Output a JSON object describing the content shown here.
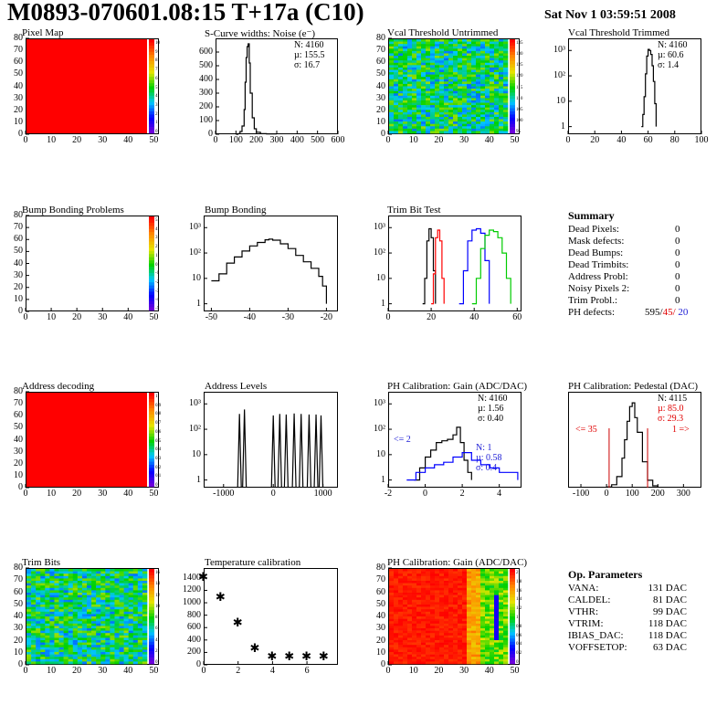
{
  "header": {
    "title": "M0893-070601.08:15 T+17a (C10)",
    "date": "Sat Nov  1 03:59:51 2008"
  },
  "colors": {
    "red": "#ff0000",
    "blue": "#0000ff",
    "green": "#00cc00",
    "black": "#000000",
    "darkred": "#cc0000"
  },
  "chart_data": [
    {
      "id": "pixel_map",
      "type": "heatmap",
      "title": "Pixel Map",
      "x_ticks": [
        0,
        10,
        20,
        30,
        40,
        50
      ],
      "y_ticks": [
        0,
        10,
        20,
        30,
        40,
        50,
        60,
        70,
        80
      ],
      "xlim": [
        0,
        52
      ],
      "ylim": [
        0,
        80
      ],
      "fill": "uniform-max",
      "colorbar_ticks": [
        "10",
        "9",
        "8",
        "7",
        "6",
        "5",
        "4",
        "3",
        "2",
        "1",
        "0"
      ]
    },
    {
      "id": "scurve",
      "type": "line",
      "title": "S-Curve widths: Noise (e⁻)",
      "x_ticks": [
        0,
        100,
        200,
        300,
        400,
        500,
        600
      ],
      "y_ticks": [
        0,
        100,
        200,
        300,
        400,
        500,
        600
      ],
      "xlim": [
        0,
        600
      ],
      "ylim": [
        0,
        700
      ],
      "stats": {
        "N": "N: 4160",
        "mean": "µ: 155.5",
        "sigma": "σ: 16.7"
      },
      "series": [
        {
          "name": "noise",
          "x": [
            100,
            110,
            120,
            130,
            140,
            145,
            150,
            155,
            160,
            165,
            170,
            180,
            190,
            200,
            220,
            250,
            300
          ],
          "y": [
            0,
            5,
            20,
            60,
            180,
            380,
            560,
            640,
            660,
            520,
            300,
            120,
            40,
            15,
            5,
            2,
            0
          ]
        }
      ]
    },
    {
      "id": "vcal_untrimmed",
      "type": "heatmap",
      "title": "Vcal Threshold Untrimmed",
      "x_ticks": [
        0,
        10,
        20,
        30,
        40,
        50
      ],
      "y_ticks": [
        0,
        10,
        20,
        30,
        40,
        50,
        60,
        70,
        80
      ],
      "xlim": [
        0,
        52
      ],
      "ylim": [
        0,
        80
      ],
      "fill": "noisy-mid",
      "colorbar_ticks": [
        "135",
        "130",
        "125",
        "120",
        "115",
        "110",
        "105",
        "100",
        "95"
      ]
    },
    {
      "id": "vcal_trimmed",
      "type": "line",
      "title": "Vcal Threshold Trimmed",
      "yscale": "log",
      "x_ticks": [
        0,
        20,
        40,
        60,
        80,
        100
      ],
      "y_ticks": [
        "1",
        "10",
        "10²",
        "10³"
      ],
      "xlim": [
        0,
        100
      ],
      "ylim_log": [
        0.5,
        3000
      ],
      "stats": {
        "N": "N: 4160",
        "mean": "µ: 60.6",
        "sigma": "σ:  1.4"
      },
      "series": [
        {
          "name": "threshold",
          "x": [
            55,
            56,
            57,
            58,
            59,
            60,
            61,
            62,
            63,
            64,
            65,
            66
          ],
          "y": [
            1,
            3,
            15,
            120,
            600,
            1100,
            1000,
            700,
            250,
            60,
            8,
            1
          ]
        }
      ]
    },
    {
      "id": "bump_problems",
      "type": "heatmap",
      "title": "Bump Bonding Problems",
      "x_ticks": [
        0,
        10,
        20,
        30,
        40,
        50
      ],
      "y_ticks": [
        0,
        10,
        20,
        30,
        40,
        50,
        60,
        70,
        80
      ],
      "xlim": [
        0,
        52
      ],
      "ylim": [
        0,
        80
      ],
      "fill": "empty",
      "colorbar_ticks": [
        "5",
        "4",
        "3",
        "2",
        "1",
        "0",
        "-1",
        "-2",
        "-3",
        "-4",
        "-5"
      ]
    },
    {
      "id": "bump_bonding",
      "type": "line",
      "title": "Bump Bonding",
      "yscale": "log",
      "x_ticks": [
        -50,
        -40,
        -30,
        -20
      ],
      "y_ticks": [
        "1",
        "10",
        "10²",
        "10³"
      ],
      "xlim": [
        -52,
        -17
      ],
      "ylim_log": [
        0.5,
        3000
      ],
      "series": [
        {
          "name": "bump",
          "x": [
            -50,
            -48,
            -46,
            -44,
            -42,
            -40,
            -38,
            -36,
            -35,
            -34,
            -32,
            -30,
            -28,
            -26,
            -24,
            -22,
            -21,
            -20
          ],
          "y": [
            8,
            15,
            40,
            70,
            120,
            190,
            260,
            330,
            350,
            320,
            230,
            150,
            80,
            45,
            25,
            12,
            5,
            1
          ]
        }
      ]
    },
    {
      "id": "trim_bit_test",
      "type": "line",
      "title": "Trim Bit Test",
      "yscale": "log",
      "x_ticks": [
        0,
        20,
        40,
        60
      ],
      "y_ticks": [
        "1",
        "10",
        "10²",
        "10³"
      ],
      "xlim": [
        0,
        62
      ],
      "ylim_log": [
        0.5,
        3000
      ],
      "series": [
        {
          "name": "black",
          "color": "black",
          "x": [
            16,
            17,
            18,
            19,
            20,
            21,
            22
          ],
          "y": [
            1,
            10,
            300,
            900,
            400,
            20,
            1
          ]
        },
        {
          "name": "red",
          "color": "red",
          "x": [
            20,
            21,
            22,
            23,
            24,
            25,
            26
          ],
          "y": [
            1,
            15,
            400,
            800,
            300,
            10,
            1
          ]
        },
        {
          "name": "blue",
          "color": "blue",
          "x": [
            33,
            35,
            37,
            39,
            41,
            43,
            45,
            47
          ],
          "y": [
            1,
            20,
            300,
            800,
            900,
            600,
            50,
            1
          ]
        },
        {
          "name": "green",
          "color": "green",
          "x": [
            39,
            41,
            43,
            45,
            47,
            49,
            51,
            53,
            55,
            57
          ],
          "y": [
            1,
            10,
            150,
            500,
            800,
            700,
            400,
            100,
            10,
            1
          ]
        }
      ]
    },
    {
      "id": "summary",
      "type": "table",
      "title": "Summary",
      "rows": [
        {
          "label": "Dead Pixels:",
          "value": "0"
        },
        {
          "label": "Mask defects:",
          "value": "0"
        },
        {
          "label": "Dead Bumps:",
          "value": "0"
        },
        {
          "label": "Dead Trimbits:",
          "value": "0"
        },
        {
          "label": "Address Probl:",
          "value": "0"
        },
        {
          "label": "Noisy Pixels 2:",
          "value": "0"
        },
        {
          "label": "Trim Probl.:",
          "value": "0"
        }
      ],
      "ph_defects": {
        "label": "PH defects:",
        "v1": "595/",
        "v2": "45/",
        "v3": "20"
      }
    },
    {
      "id": "address_decoding",
      "type": "heatmap",
      "title": "Address decoding",
      "x_ticks": [
        0,
        10,
        20,
        30,
        40,
        50
      ],
      "y_ticks": [
        0,
        10,
        20,
        30,
        40,
        50,
        60,
        70,
        80
      ],
      "xlim": [
        0,
        52
      ],
      "ylim": [
        0,
        80
      ],
      "fill": "uniform-max",
      "colorbar_ticks": [
        "1",
        "0.9",
        "0.8",
        "0.7",
        "0.6",
        "0.5",
        "0.4",
        "0.3",
        "0.2",
        "0.1",
        "0"
      ]
    },
    {
      "id": "address_levels",
      "type": "bar",
      "title": "Address Levels",
      "yscale": "log",
      "x_ticks": [
        -1000,
        0,
        1000
      ],
      "y_ticks": [
        "1",
        "10",
        "10²",
        "10³"
      ],
      "xlim": [
        -1400,
        1300
      ],
      "ylim_log": [
        0.5,
        3000
      ],
      "peaks": {
        "x": [
          -680,
          -580,
          0,
          130,
          260,
          420,
          560,
          720,
          860,
          960
        ],
        "y": [
          400,
          600,
          350,
          400,
          380,
          420,
          400,
          380,
          380,
          350
        ]
      }
    },
    {
      "id": "ph_gain",
      "type": "line",
      "title": "PH Calibration: Gain (ADC/DAC)",
      "yscale": "log",
      "x_ticks": [
        -2,
        0,
        2,
        4
      ],
      "y_ticks": [
        "1",
        "10",
        "10²",
        "10³"
      ],
      "xlim": [
        -2,
        5.2
      ],
      "ylim_log": [
        0.5,
        3000
      ],
      "stats": {
        "N": "N: 4160",
        "mean": "µ: 1.56",
        "sigma": "σ: 0.40"
      },
      "stats2": {
        "N": "N: 1",
        "mean": "µ: 0.58",
        "sigma": "σ: 0.4"
      },
      "annotation": "<= 2",
      "series": [
        {
          "name": "gain",
          "color": "black",
          "x": [
            -0.6,
            -0.3,
            0,
            0.3,
            0.6,
            0.9,
            1.2,
            1.5,
            1.7,
            1.9,
            2.1,
            2.3,
            2.5
          ],
          "y": [
            1,
            3,
            8,
            15,
            30,
            35,
            40,
            60,
            120,
            30,
            6,
            2,
            1
          ]
        },
        {
          "name": "gain-2",
          "color": "blue",
          "x": [
            -1,
            -0.5,
            0,
            0.5,
            1,
            1.5,
            2,
            2.5,
            3,
            3.5,
            4,
            4.5,
            5
          ],
          "y": [
            1,
            2,
            3,
            4,
            5,
            8,
            12,
            6,
            4,
            3,
            2,
            2,
            1
          ]
        }
      ]
    },
    {
      "id": "ph_pedestal",
      "type": "line",
      "title": "PH Calibration: Pedestal (DAC)",
      "x_ticks": [
        -100,
        0,
        100,
        200,
        300
      ],
      "y_ticks": [],
      "xlim": [
        -150,
        370
      ],
      "stats": {
        "N": "N: 4115",
        "mean": "µ: 85.0",
        "sigma": "σ: 29.3"
      },
      "annotation_left": "<= 35",
      "annotation_right": "1 =>",
      "cut_lines": [
        10,
        160
      ],
      "series": [
        {
          "name": "pedestal",
          "x": [
            0,
            20,
            40,
            60,
            70,
            80,
            90,
            100,
            110,
            120,
            140,
            160,
            180,
            200
          ],
          "y": [
            2,
            8,
            30,
            80,
            130,
            180,
            220,
            230,
            190,
            150,
            70,
            20,
            5,
            1
          ]
        }
      ]
    },
    {
      "id": "trim_bits",
      "type": "heatmap",
      "title": "Trim Bits",
      "x_ticks": [
        0,
        10,
        20,
        30,
        40,
        50
      ],
      "y_ticks": [
        0,
        10,
        20,
        30,
        40,
        50,
        60,
        70,
        80
      ],
      "xlim": [
        0,
        52
      ],
      "ylim": [
        0,
        80
      ],
      "fill": "noisy-mid",
      "colorbar_ticks": [
        "16",
        "14",
        "12",
        "10",
        "8",
        "6",
        "4",
        "2",
        "0"
      ]
    },
    {
      "id": "temp_calib",
      "type": "scatter",
      "title": "Temperature calibration",
      "x_ticks": [
        0,
        2,
        4,
        6
      ],
      "y_ticks": [
        0,
        200,
        400,
        600,
        800,
        1000,
        1200,
        1400
      ],
      "xlim": [
        0,
        7.8
      ],
      "ylim": [
        0,
        1560
      ],
      "points": {
        "x": [
          0,
          1,
          2,
          3,
          4,
          5,
          6,
          7
        ],
        "y": [
          1390,
          1060,
          650,
          230,
          100,
          100,
          100,
          110
        ]
      }
    },
    {
      "id": "ph_gain_map",
      "type": "heatmap",
      "title": "PH Calibration: Gain (ADC/DAC)",
      "x_ticks": [
        0,
        10,
        20,
        30,
        40,
        50
      ],
      "y_ticks": [
        0,
        10,
        20,
        30,
        40,
        50,
        60,
        70,
        80
      ],
      "xlim": [
        0,
        52
      ],
      "ylim": [
        0,
        80
      ],
      "fill": "gradient",
      "colorbar_ticks": [
        "2",
        "1.8",
        "1.6",
        "1.4",
        "1.2",
        "1",
        "0.8",
        "0.6",
        "0.4",
        "0.2",
        "0"
      ]
    }
  ],
  "op_params": {
    "title": "Op. Parameters",
    "rows": [
      {
        "label": "VANA:",
        "value": "131 DAC"
      },
      {
        "label": "CALDEL:",
        "value": "81 DAC"
      },
      {
        "label": "VTHR:",
        "value": "99 DAC"
      },
      {
        "label": "VTRIM:",
        "value": "118 DAC"
      },
      {
        "label": "IBIAS_DAC:",
        "value": "118 DAC"
      },
      {
        "label": "VOFFSETOP:",
        "value": "63 DAC"
      }
    ]
  }
}
